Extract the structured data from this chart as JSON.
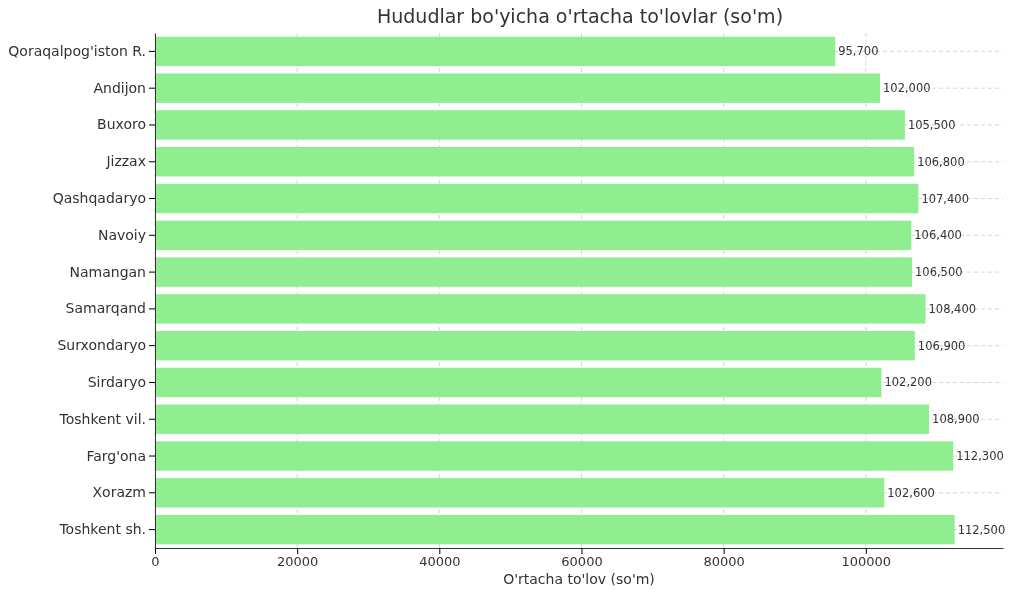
{
  "chart_data": {
    "type": "bar",
    "orientation": "horizontal",
    "title": "Hududlar bo'yicha o'rtacha to'lovlar (so'm)",
    "xlabel": "O'rtacha to'lov (so'm)",
    "categories": [
      "Qoraqalpog'iston R.",
      "Andijon",
      "Buxoro",
      "Jizzax",
      "Qashqadaryo",
      "Navoiy",
      "Namangan",
      "Samarqand",
      "Surxondaryo",
      "Sirdaryo",
      "Toshkent vil.",
      "Farg'ona",
      "Xorazm",
      "Toshkent sh."
    ],
    "values": [
      95700,
      102000,
      105500,
      106800,
      107400,
      106400,
      106500,
      108400,
      106900,
      102200,
      108900,
      112300,
      102600,
      112500
    ],
    "value_labels": [
      "95,700",
      "102,000",
      "105,500",
      "106,800",
      "107,400",
      "106,400",
      "106,500",
      "108,400",
      "106,900",
      "102,200",
      "108,900",
      "112,300",
      "102,600",
      "112,500"
    ],
    "color": "#90ee90",
    "xlim": [
      0,
      119300
    ],
    "xticks": [
      0,
      20000,
      40000,
      60000,
      80000,
      100000
    ],
    "grid": true
  }
}
